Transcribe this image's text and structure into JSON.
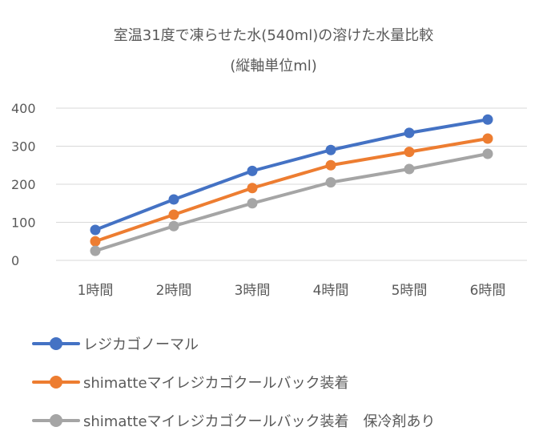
{
  "chart_data": {
    "type": "line",
    "title": "室温31度で凍らせた水(540ml)の溶けた水量比較",
    "subtitle": "(縦軸単位ml)",
    "categories": [
      "1時間",
      "2時間",
      "3時間",
      "4時間",
      "5時間",
      "6時間"
    ],
    "ylim": [
      0,
      400
    ],
    "yticks": [
      "0",
      "100",
      "200",
      "300",
      "400"
    ],
    "grid": true,
    "legend_position": "bottom",
    "series": [
      {
        "name": "レジカゴノーマル",
        "color": "#4472C4",
        "values": [
          80,
          160,
          235,
          290,
          335,
          370
        ]
      },
      {
        "name": "shimatteマイレジカゴクールバック装着",
        "color": "#ED7D31",
        "values": [
          50,
          120,
          190,
          250,
          285,
          320
        ]
      },
      {
        "name": "shimatteマイレジカゴクールバック装着　保冷剤あり",
        "color": "#A5A5A5",
        "values": [
          25,
          90,
          150,
          205,
          240,
          280
        ]
      }
    ]
  }
}
